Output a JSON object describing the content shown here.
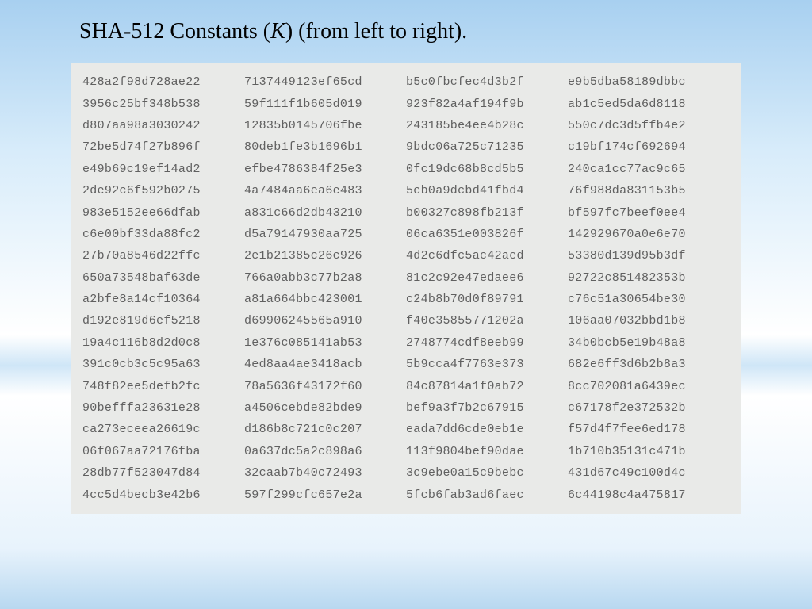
{
  "title": {
    "prefix": "SHA-512 Constants (",
    "k": "K",
    "suffix": ") (from left to right)."
  },
  "colors": {
    "panel_bg": "#e9eae8",
    "text": "#606060",
    "title": "#000000"
  },
  "typography": {
    "title_family": "Times New Roman",
    "title_size_pt": 21,
    "mono_family": "Courier New",
    "mono_size_pt": 11
  },
  "table": {
    "type": "grid",
    "columns": 4,
    "rows": 20,
    "values": [
      [
        "428a2f98d728ae22",
        "7137449123ef65cd",
        "b5c0fbcfec4d3b2f",
        "e9b5dba58189dbbc"
      ],
      [
        "3956c25bf348b538",
        "59f111f1b605d019",
        "923f82a4af194f9b",
        "ab1c5ed5da6d8118"
      ],
      [
        "d807aa98a3030242",
        "12835b0145706fbe",
        "243185be4ee4b28c",
        "550c7dc3d5ffb4e2"
      ],
      [
        "72be5d74f27b896f",
        "80deb1fe3b1696b1",
        "9bdc06a725c71235",
        "c19bf174cf692694"
      ],
      [
        "e49b69c19ef14ad2",
        "efbe4786384f25e3",
        "0fc19dc68b8cd5b5",
        "240ca1cc77ac9c65"
      ],
      [
        "2de92c6f592b0275",
        "4a7484aa6ea6e483",
        "5cb0a9dcbd41fbd4",
        "76f988da831153b5"
      ],
      [
        "983e5152ee66dfab",
        "a831c66d2db43210",
        "b00327c898fb213f",
        "bf597fc7beef0ee4"
      ],
      [
        "c6e00bf33da88fc2",
        "d5a79147930aa725",
        "06ca6351e003826f",
        "142929670a0e6e70"
      ],
      [
        "27b70a8546d22ffc",
        "2e1b21385c26c926",
        "4d2c6dfc5ac42aed",
        "53380d139d95b3df"
      ],
      [
        "650a73548baf63de",
        "766a0abb3c77b2a8",
        "81c2c92e47edaee6",
        "92722c851482353b"
      ],
      [
        "a2bfe8a14cf10364",
        "a81a664bbc423001",
        "c24b8b70d0f89791",
        "c76c51a30654be30"
      ],
      [
        "d192e819d6ef5218",
        "d69906245565a910",
        "f40e35855771202a",
        "106aa07032bbd1b8"
      ],
      [
        "19a4c116b8d2d0c8",
        "1e376c085141ab53",
        "2748774cdf8eeb99",
        "34b0bcb5e19b48a8"
      ],
      [
        "391c0cb3c5c95a63",
        "4ed8aa4ae3418acb",
        "5b9cca4f7763e373",
        "682e6ff3d6b2b8a3"
      ],
      [
        "748f82ee5defb2fc",
        "78a5636f43172f60",
        "84c87814a1f0ab72",
        "8cc702081a6439ec"
      ],
      [
        "90befffa23631e28",
        "a4506cebde82bde9",
        "bef9a3f7b2c67915",
        "c67178f2e372532b"
      ],
      [
        "ca273eceea26619c",
        "d186b8c721c0c207",
        "eada7dd6cde0eb1e",
        "f57d4f7fee6ed178"
      ],
      [
        "06f067aa72176fba",
        "0a637dc5a2c898a6",
        "113f9804bef90dae",
        "1b710b35131c471b"
      ],
      [
        "28db77f523047d84",
        "32caab7b40c72493",
        "3c9ebe0a15c9bebc",
        "431d67c49c100d4c"
      ],
      [
        "4cc5d4becb3e42b6",
        "597f299cfc657e2a",
        "5fcb6fab3ad6faec",
        "6c44198c4a475817"
      ]
    ]
  }
}
